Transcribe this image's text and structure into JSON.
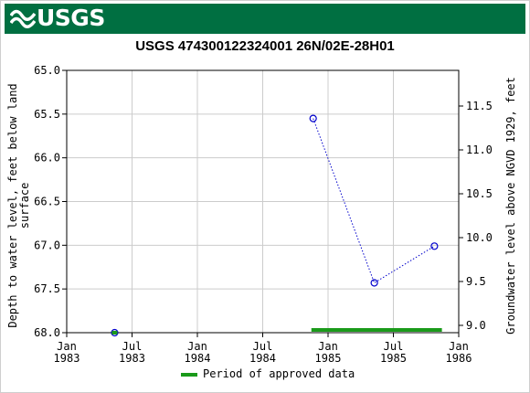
{
  "header": {
    "logo_text": "USGS",
    "logo_icon": "usgs-wave-icon",
    "brand_color": "#006f41"
  },
  "chart_data": {
    "type": "scatter",
    "title": "USGS 474300122324001 26N/02E-28H01",
    "ylabel_left": "Depth to water level, feet below land surface",
    "ylabel_left_lines": [
      "Depth to water level, feet below land",
      "surface"
    ],
    "ylabel_right": "Groundwater level above NGVD 1929, feet",
    "y_left_range": [
      68.0,
      65.0
    ],
    "y_left_ticks": [
      "65.0",
      "65.5",
      "66.0",
      "66.5",
      "67.0",
      "67.5",
      "68.0"
    ],
    "y_right_ticks": [
      "11.5",
      "11.0",
      "10.5",
      "10.0",
      "9.5",
      "9.0"
    ],
    "x_ticks": [
      {
        "line1": "Jan",
        "line2": "1983"
      },
      {
        "line1": "Jul",
        "line2": "1983"
      },
      {
        "line1": "Jan",
        "line2": "1984"
      },
      {
        "line1": "Jul",
        "line2": "1984"
      },
      {
        "line1": "Jan",
        "line2": "1985"
      },
      {
        "line1": "Jul",
        "line2": "1985"
      },
      {
        "line1": "Jan",
        "line2": "1986"
      }
    ],
    "series": [
      {
        "color": "#0000cc",
        "points": [
          {
            "date": "1983-05-15",
            "depth": 68.0
          },
          {
            "date": "1984-11-20",
            "depth": 65.55
          },
          {
            "date": "1985-05-10",
            "depth": 67.43
          },
          {
            "date": "1985-10-25",
            "depth": 67.01
          }
        ]
      }
    ],
    "approved_periods": [
      {
        "start": "1984-11-15",
        "end": "1985-11-15",
        "color": "#1a9a1a"
      }
    ],
    "grid": true,
    "legend": {
      "label": "Period of approved data",
      "position": "bottom-center"
    }
  }
}
